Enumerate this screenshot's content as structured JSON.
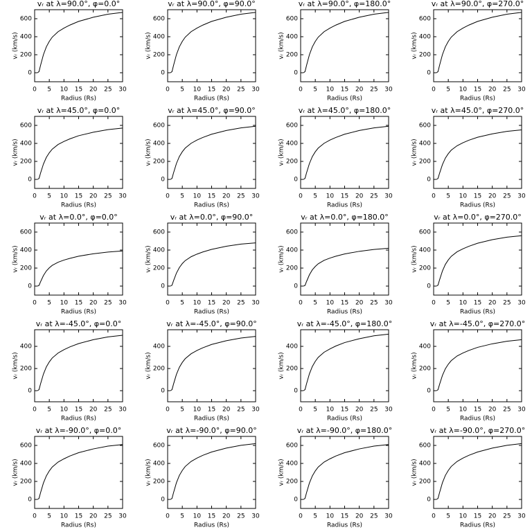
{
  "chart_data": [
    {
      "type": "line",
      "title": "vᵣ at λ=90.0°, φ=0.0°",
      "xlabel": "Radius (Rs)",
      "ylabel": "vᵣ (km/s)",
      "xlim": [
        0,
        30
      ],
      "ylim": [
        -100,
        700
      ],
      "xticks": [
        0,
        5,
        10,
        15,
        20,
        25,
        30
      ],
      "yticks": [
        0,
        200,
        400,
        600
      ],
      "color": "#000000",
      "x": [
        1,
        1.5,
        2,
        3,
        4,
        5,
        6,
        8,
        10,
        12,
        15,
        20,
        25,
        30
      ],
      "values": [
        0,
        13,
        80,
        201,
        288,
        348,
        395,
        456,
        496,
        529,
        570,
        616,
        650,
        670
      ]
    },
    {
      "type": "line",
      "title": "vᵣ at λ=90.0°, φ=90.0°",
      "xlabel": "Radius (Rs)",
      "ylabel": "vᵣ (km/s)",
      "xlim": [
        0,
        30
      ],
      "ylim": [
        -100,
        700
      ],
      "xticks": [
        0,
        5,
        10,
        15,
        20,
        25,
        30
      ],
      "yticks": [
        0,
        200,
        400,
        600
      ],
      "color": "#000000",
      "x": [
        1,
        1.5,
        2,
        3,
        4,
        5,
        6,
        8,
        10,
        12,
        15,
        20,
        25,
        30
      ],
      "values": [
        0,
        13,
        80,
        201,
        288,
        348,
        395,
        456,
        496,
        529,
        570,
        616,
        650,
        670
      ]
    },
    {
      "type": "line",
      "title": "vᵣ at λ=90.0°, φ=180.0°",
      "xlabel": "Radius (Rs)",
      "ylabel": "vᵣ (km/s)",
      "xlim": [
        0,
        30
      ],
      "ylim": [
        -100,
        700
      ],
      "xticks": [
        0,
        5,
        10,
        15,
        20,
        25,
        30
      ],
      "yticks": [
        0,
        200,
        400,
        600
      ],
      "color": "#000000",
      "x": [
        1,
        1.5,
        2,
        3,
        4,
        5,
        6,
        8,
        10,
        12,
        15,
        20,
        25,
        30
      ],
      "values": [
        0,
        13,
        80,
        201,
        288,
        348,
        395,
        456,
        496,
        529,
        570,
        616,
        650,
        670
      ]
    },
    {
      "type": "line",
      "title": "vᵣ at λ=90.0°, φ=270.0°",
      "xlabel": "Radius (Rs)",
      "ylabel": "vᵣ (km/s)",
      "xlim": [
        0,
        30
      ],
      "ylim": [
        -100,
        700
      ],
      "xticks": [
        0,
        5,
        10,
        15,
        20,
        25,
        30
      ],
      "yticks": [
        0,
        200,
        400,
        600
      ],
      "color": "#000000",
      "x": [
        1,
        1.5,
        2,
        3,
        4,
        5,
        6,
        8,
        10,
        12,
        15,
        20,
        25,
        30
      ],
      "values": [
        0,
        13,
        80,
        201,
        288,
        348,
        395,
        456,
        496,
        529,
        570,
        616,
        650,
        670
      ]
    },
    {
      "type": "line",
      "title": "vᵣ at λ=45.0°, φ=0.0°",
      "xlabel": "Radius (Rs)",
      "ylabel": "vᵣ (km/s)",
      "xlim": [
        0,
        30
      ],
      "ylim": [
        -100,
        700
      ],
      "xticks": [
        0,
        5,
        10,
        15,
        20,
        25,
        30
      ],
      "yticks": [
        0,
        200,
        400,
        600
      ],
      "color": "#000000",
      "x": [
        1,
        1.5,
        2,
        3,
        4,
        5,
        6,
        8,
        10,
        12,
        15,
        20,
        25,
        30
      ],
      "values": [
        0,
        11,
        68,
        171,
        245,
        296,
        336,
        388,
        422,
        450,
        485,
        524,
        553,
        570
      ]
    },
    {
      "type": "line",
      "title": "vᵣ at λ=45.0°, φ=90.0°",
      "xlabel": "Radius (Rs)",
      "ylabel": "vᵣ (km/s)",
      "xlim": [
        0,
        30
      ],
      "ylim": [
        -100,
        700
      ],
      "xticks": [
        0,
        5,
        10,
        15,
        20,
        25,
        30
      ],
      "yticks": [
        0,
        200,
        400,
        600
      ],
      "color": "#000000",
      "x": [
        1,
        1.5,
        2,
        3,
        4,
        5,
        6,
        8,
        10,
        12,
        15,
        20,
        25,
        30
      ],
      "values": [
        0,
        12,
        71,
        177,
        254,
        307,
        348,
        401,
        437,
        466,
        502,
        543,
        572,
        590
      ]
    },
    {
      "type": "line",
      "title": "vᵣ at λ=45.0°, φ=180.0°",
      "xlabel": "Radius (Rs)",
      "ylabel": "vᵣ (km/s)",
      "xlim": [
        0,
        30
      ],
      "ylim": [
        -100,
        700
      ],
      "xticks": [
        0,
        5,
        10,
        15,
        20,
        25,
        30
      ],
      "yticks": [
        0,
        200,
        400,
        600
      ],
      "color": "#000000",
      "x": [
        1,
        1.5,
        2,
        3,
        4,
        5,
        6,
        8,
        10,
        12,
        15,
        20,
        25,
        30
      ],
      "values": [
        0,
        12,
        71,
        177,
        254,
        307,
        348,
        401,
        437,
        466,
        502,
        543,
        572,
        590
      ]
    },
    {
      "type": "line",
      "title": "vᵣ at λ=45.0°, φ=270.0°",
      "xlabel": "Radius (Rs)",
      "ylabel": "vᵣ (km/s)",
      "xlim": [
        0,
        30
      ],
      "ylim": [
        -100,
        700
      ],
      "xticks": [
        0,
        5,
        10,
        15,
        20,
        25,
        30
      ],
      "yticks": [
        0,
        200,
        400,
        600
      ],
      "color": "#000000",
      "x": [
        1,
        1.5,
        2,
        3,
        4,
        5,
        6,
        8,
        10,
        12,
        15,
        20,
        25,
        30
      ],
      "values": [
        0,
        11,
        66,
        165,
        237,
        286,
        325,
        374,
        407,
        435,
        468,
        506,
        534,
        550
      ]
    },
    {
      "type": "line",
      "title": "vᵣ at λ=0.0°, φ=0.0°",
      "xlabel": "Radius (Rs)",
      "ylabel": "vᵣ (km/s)",
      "xlim": [
        0,
        30
      ],
      "ylim": [
        -100,
        700
      ],
      "xticks": [
        0,
        5,
        10,
        15,
        20,
        25,
        30
      ],
      "yticks": [
        0,
        200,
        400,
        600
      ],
      "color": "#000000",
      "x": [
        1,
        1.5,
        2,
        3,
        4,
        5,
        6,
        8,
        10,
        12,
        15,
        20,
        25,
        30
      ],
      "values": [
        0,
        8,
        47,
        117,
        168,
        203,
        230,
        265,
        289,
        308,
        332,
        359,
        378,
        390
      ]
    },
    {
      "type": "line",
      "title": "vᵣ at λ=0.0°, φ=90.0°",
      "xlabel": "Radius (Rs)",
      "ylabel": "vᵣ (km/s)",
      "xlim": [
        0,
        30
      ],
      "ylim": [
        -100,
        700
      ],
      "xticks": [
        0,
        5,
        10,
        15,
        20,
        25,
        30
      ],
      "yticks": [
        0,
        200,
        400,
        600
      ],
      "color": "#000000",
      "x": [
        1,
        1.5,
        2,
        3,
        4,
        5,
        6,
        8,
        10,
        12,
        15,
        20,
        25,
        30
      ],
      "values": [
        0,
        10,
        58,
        144,
        206,
        250,
        283,
        326,
        355,
        379,
        408,
        442,
        466,
        480
      ]
    },
    {
      "type": "line",
      "title": "vᵣ at λ=0.0°, φ=180.0°",
      "xlabel": "Radius (Rs)",
      "ylabel": "vᵣ (km/s)",
      "xlim": [
        0,
        30
      ],
      "ylim": [
        -100,
        700
      ],
      "xticks": [
        0,
        5,
        10,
        15,
        20,
        25,
        30
      ],
      "yticks": [
        0,
        200,
        400,
        600
      ],
      "color": "#000000",
      "x": [
        1,
        1.5,
        2,
        3,
        4,
        5,
        6,
        8,
        10,
        12,
        15,
        20,
        25,
        30
      ],
      "values": [
        0,
        8,
        50,
        126,
        181,
        218,
        248,
        286,
        311,
        332,
        357,
        386,
        407,
        420
      ]
    },
    {
      "type": "line",
      "title": "vᵣ at λ=0.0°, φ=270.0°",
      "xlabel": "Radius (Rs)",
      "ylabel": "vᵣ (km/s)",
      "xlim": [
        0,
        30
      ],
      "ylim": [
        -100,
        700
      ],
      "xticks": [
        0,
        5,
        10,
        15,
        20,
        25,
        30
      ],
      "yticks": [
        0,
        200,
        400,
        600
      ],
      "color": "#000000",
      "x": [
        1,
        1.5,
        2,
        3,
        4,
        5,
        6,
        8,
        10,
        12,
        15,
        20,
        25,
        30
      ],
      "values": [
        0,
        11,
        67,
        168,
        241,
        291,
        330,
        381,
        414,
        442,
        476,
        515,
        543,
        560
      ]
    },
    {
      "type": "line",
      "title": "vᵣ at λ=-45.0°, φ=0.0°",
      "xlabel": "Radius (Rs)",
      "ylabel": "vᵣ (km/s)",
      "xlim": [
        0,
        30
      ],
      "ylim": [
        -100,
        550
      ],
      "xticks": [
        0,
        5,
        10,
        15,
        20,
        25,
        30
      ],
      "yticks": [
        0,
        200,
        400
      ],
      "color": "#000000",
      "x": [
        1,
        1.5,
        2,
        3,
        4,
        5,
        6,
        8,
        10,
        12,
        15,
        20,
        25,
        30
      ],
      "values": [
        0,
        10,
        60,
        150,
        215,
        260,
        295,
        340,
        370,
        395,
        425,
        460,
        485,
        500
      ]
    },
    {
      "type": "line",
      "title": "vᵣ at λ=-45.0°, φ=90.0°",
      "xlabel": "Radius (Rs)",
      "ylabel": "vᵣ (km/s)",
      "xlim": [
        0,
        30
      ],
      "ylim": [
        -100,
        550
      ],
      "xticks": [
        0,
        5,
        10,
        15,
        20,
        25,
        30
      ],
      "yticks": [
        0,
        200,
        400
      ],
      "color": "#000000",
      "x": [
        1,
        1.5,
        2,
        3,
        4,
        5,
        6,
        8,
        10,
        12,
        15,
        20,
        25,
        30
      ],
      "values": [
        0,
        10,
        59,
        147,
        211,
        255,
        289,
        333,
        363,
        387,
        417,
        451,
        475,
        490
      ]
    },
    {
      "type": "line",
      "title": "vᵣ at λ=-45.0°, φ=180.0°",
      "xlabel": "Radius (Rs)",
      "ylabel": "vᵣ (km/s)",
      "xlim": [
        0,
        30
      ],
      "ylim": [
        -100,
        550
      ],
      "xticks": [
        0,
        5,
        10,
        15,
        20,
        25,
        30
      ],
      "yticks": [
        0,
        200,
        400
      ],
      "color": "#000000",
      "x": [
        1,
        1.5,
        2,
        3,
        4,
        5,
        6,
        8,
        10,
        12,
        15,
        20,
        25,
        30
      ],
      "values": [
        0,
        10,
        61,
        153,
        219,
        265,
        301,
        347,
        377,
        403,
        434,
        469,
        495,
        510
      ]
    },
    {
      "type": "line",
      "title": "vᵣ at λ=-45.0°, φ=270.0°",
      "xlabel": "Radius (Rs)",
      "ylabel": "vᵣ (km/s)",
      "xlim": [
        0,
        30
      ],
      "ylim": [
        -100,
        550
      ],
      "xticks": [
        0,
        5,
        10,
        15,
        20,
        25,
        30
      ],
      "yticks": [
        0,
        200,
        400
      ],
      "color": "#000000",
      "x": [
        1,
        1.5,
        2,
        3,
        4,
        5,
        6,
        8,
        10,
        12,
        15,
        20,
        25,
        30
      ],
      "values": [
        0,
        9,
        55,
        138,
        198,
        239,
        271,
        313,
        340,
        363,
        391,
        423,
        446,
        460
      ]
    },
    {
      "type": "line",
      "title": "vᵣ at λ=-90.0°, φ=0.0°",
      "xlabel": "Radius (Rs)",
      "ylabel": "vᵣ (km/s)",
      "xlim": [
        0,
        30
      ],
      "ylim": [
        -100,
        700
      ],
      "xticks": [
        0,
        5,
        10,
        15,
        20,
        25,
        30
      ],
      "yticks": [
        0,
        200,
        400,
        600
      ],
      "color": "#000000",
      "x": [
        1,
        1.5,
        2,
        3,
        4,
        5,
        6,
        8,
        10,
        12,
        15,
        20,
        25,
        30
      ],
      "values": [
        0,
        12,
        73,
        183,
        262,
        317,
        360,
        415,
        451,
        482,
        519,
        561,
        592,
        610
      ]
    },
    {
      "type": "line",
      "title": "vᵣ at λ=-90.0°, φ=90.0°",
      "xlabel": "Radius (Rs)",
      "ylabel": "vᵣ (km/s)",
      "xlim": [
        0,
        30
      ],
      "ylim": [
        -100,
        700
      ],
      "xticks": [
        0,
        5,
        10,
        15,
        20,
        25,
        30
      ],
      "yticks": [
        0,
        200,
        400,
        600
      ],
      "color": "#000000",
      "x": [
        1,
        1.5,
        2,
        3,
        4,
        5,
        6,
        8,
        10,
        12,
        15,
        20,
        25,
        30
      ],
      "values": [
        0,
        12,
        74,
        186,
        267,
        322,
        366,
        422,
        459,
        490,
        527,
        570,
        601,
        620
      ]
    },
    {
      "type": "line",
      "title": "vᵣ at λ=-90.0°, φ=180.0°",
      "xlabel": "Radius (Rs)",
      "ylabel": "vᵣ (km/s)",
      "xlim": [
        0,
        30
      ],
      "ylim": [
        -100,
        700
      ],
      "xticks": [
        0,
        5,
        10,
        15,
        20,
        25,
        30
      ],
      "yticks": [
        0,
        200,
        400,
        600
      ],
      "color": "#000000",
      "x": [
        1,
        1.5,
        2,
        3,
        4,
        5,
        6,
        8,
        10,
        12,
        15,
        20,
        25,
        30
      ],
      "values": [
        0,
        12,
        73,
        183,
        262,
        317,
        360,
        415,
        451,
        482,
        519,
        561,
        592,
        610
      ]
    },
    {
      "type": "line",
      "title": "vᵣ at λ=-90.0°, φ=270.0°",
      "xlabel": "Radius (Rs)",
      "ylabel": "vᵣ (km/s)",
      "xlim": [
        0,
        30
      ],
      "ylim": [
        -100,
        700
      ],
      "xticks": [
        0,
        5,
        10,
        15,
        20,
        25,
        30
      ],
      "yticks": [
        0,
        200,
        400,
        600
      ],
      "color": "#000000",
      "x": [
        1,
        1.5,
        2,
        3,
        4,
        5,
        6,
        8,
        10,
        12,
        15,
        20,
        25,
        30
      ],
      "values": [
        0,
        12,
        74,
        186,
        267,
        322,
        366,
        422,
        459,
        490,
        527,
        570,
        601,
        620
      ]
    }
  ]
}
